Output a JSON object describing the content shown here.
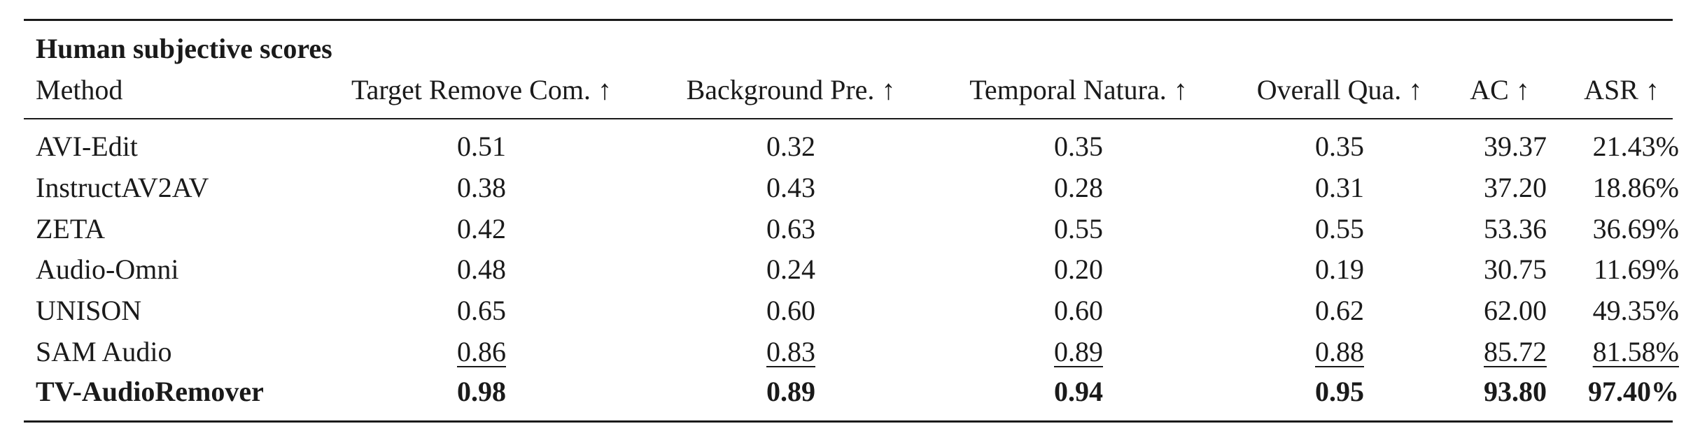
{
  "table": {
    "title": "Human subjective scores",
    "header": [
      "Method",
      "Target Remove Com. ↑",
      "Background Pre. ↑",
      "Temporal Natura. ↑",
      "Overall Qua. ↑",
      "AC ↑",
      "ASR ↑"
    ],
    "rows": [
      [
        "AVI-Edit",
        "0.51",
        "0.32",
        "0.35",
        "0.35",
        "39.37",
        "21.43%"
      ],
      [
        "InstructAV2AV",
        "0.38",
        "0.43",
        "0.28",
        "0.31",
        "37.20",
        "18.86%"
      ],
      [
        "ZETA",
        "0.42",
        "0.63",
        "0.55",
        "0.55",
        "53.36",
        "36.69%"
      ],
      [
        "Audio-Omni",
        "0.48",
        "0.24",
        "0.20",
        "0.19",
        "30.75",
        "11.69%"
      ],
      [
        "UNISON",
        "0.65",
        "0.60",
        "0.60",
        "0.62",
        "62.00",
        "49.35%"
      ],
      [
        "SAM Audio",
        "0.86",
        "0.83",
        "0.89",
        "0.88",
        "85.72",
        "81.58%"
      ],
      [
        "TV-AudioRemover",
        "0.98",
        "0.89",
        "0.94",
        "0.95",
        "93.80",
        "97.40%"
      ]
    ]
  }
}
